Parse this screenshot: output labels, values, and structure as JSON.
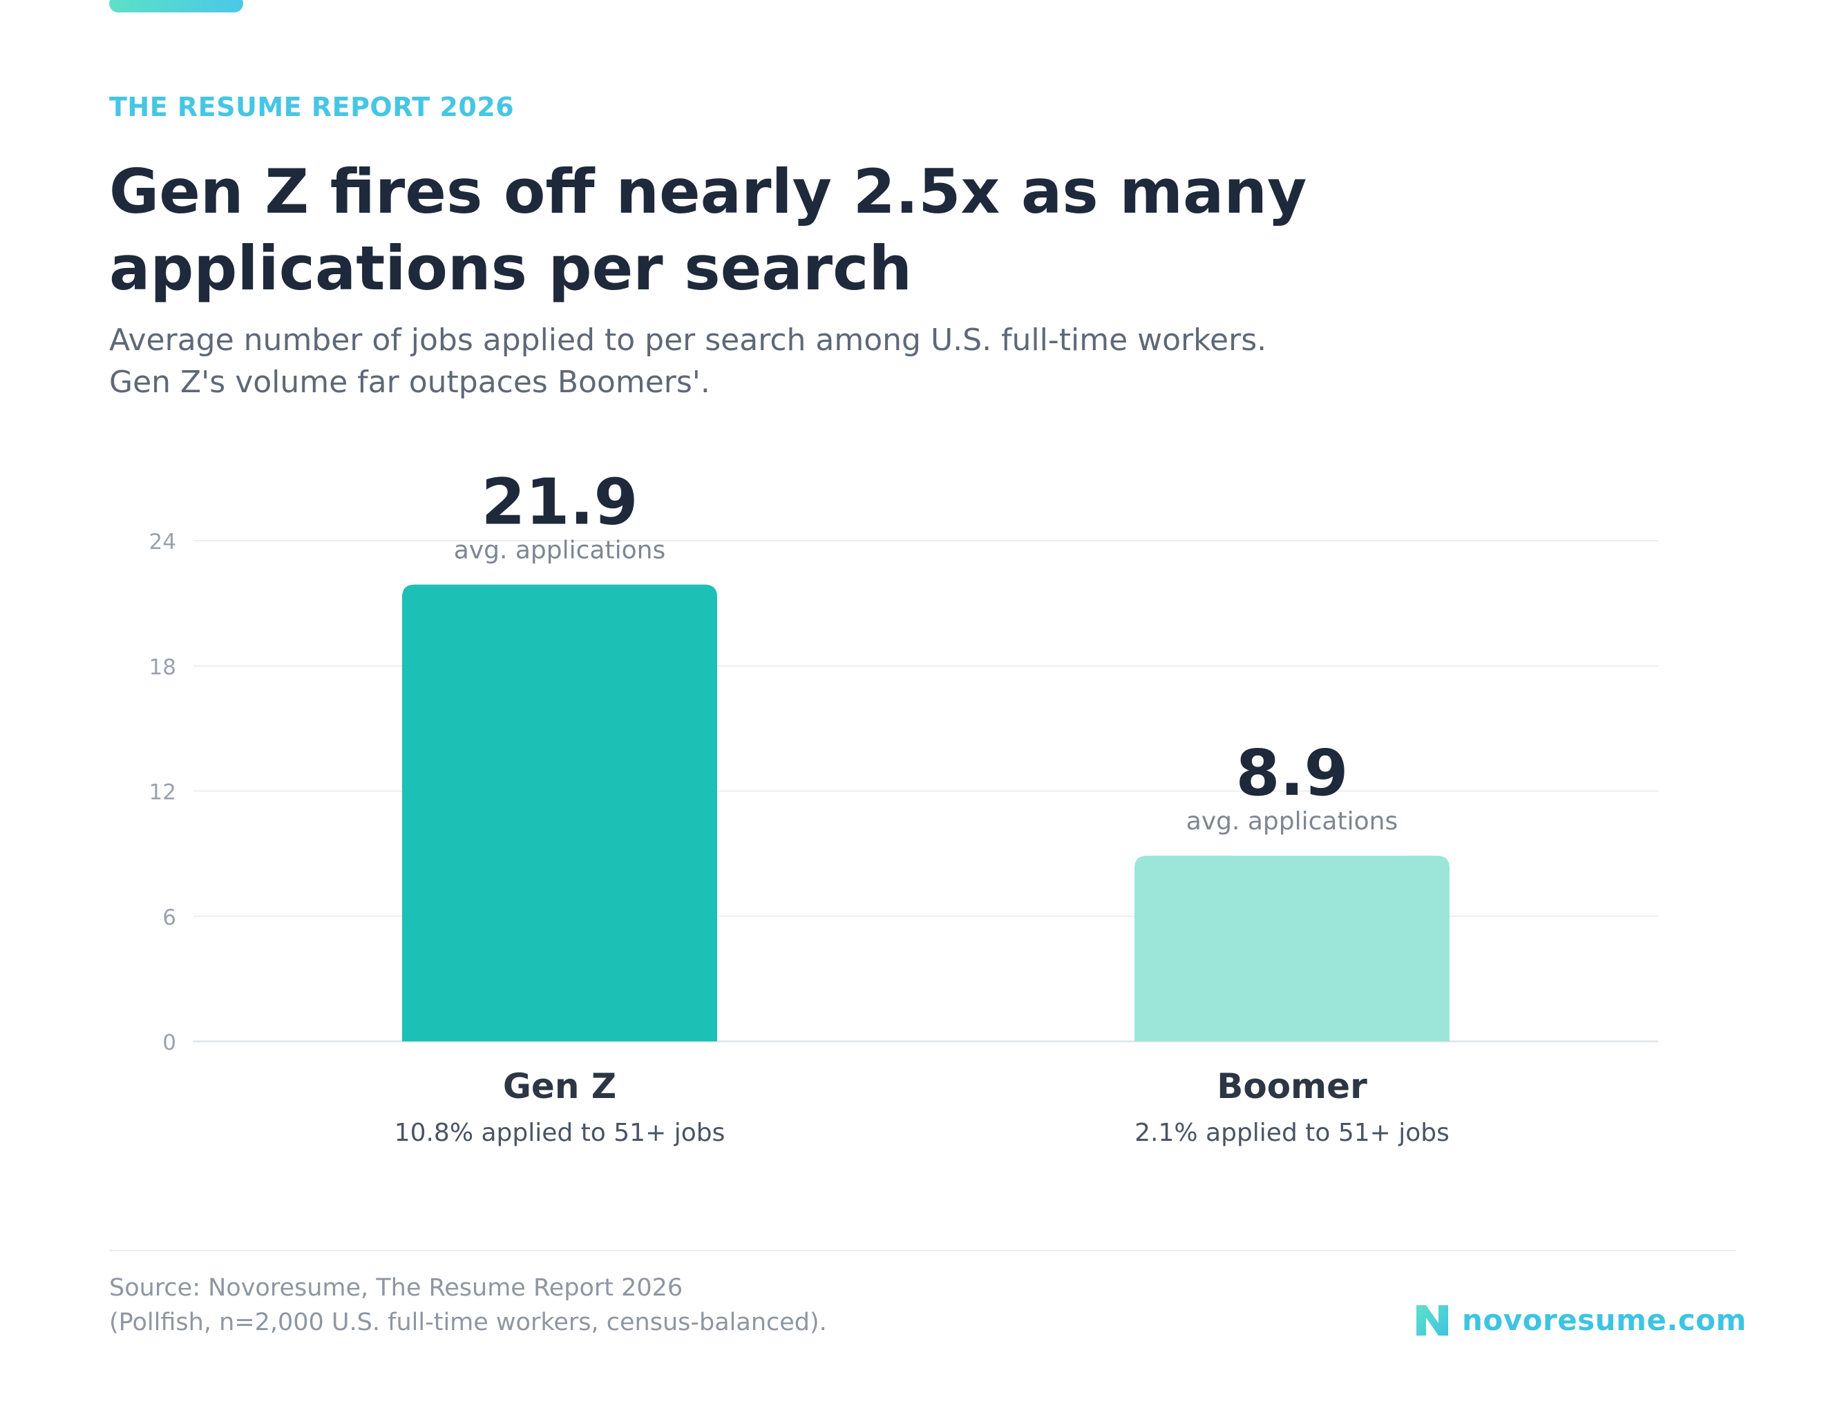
{
  "header": {
    "eyebrow": "THE RESUME REPORT 2026",
    "title": "Gen Z fires off nearly 2.5x as many applications per search",
    "subtitle_line1": "Average number of jobs applied to per search among U.S. full-time workers.",
    "subtitle_line2": "Gen Z's volume far outpaces Boomers'."
  },
  "chart_data": {
    "type": "bar",
    "categories": [
      "Gen Z",
      "Boomer"
    ],
    "values": [
      21.9,
      8.9
    ],
    "value_caption": "avg. applications",
    "category_notes": [
      "10.8% applied to 51+ jobs",
      "2.1% applied to 51+ jobs"
    ],
    "bar_colors": [
      "#1dc0b5",
      "#9be6d9"
    ],
    "ylim": [
      0,
      24
    ],
    "yticks": [
      0,
      6,
      12,
      18,
      24
    ],
    "grid": true
  },
  "footer": {
    "source_line1": "Source: Novoresume, The Resume Report 2026",
    "source_line2": "(Pollfish, n=2,000 U.S. full-time workers, census-balanced).",
    "logo_text": "novoresume.com",
    "logo_icon": "novoresume-logo-icon"
  },
  "colors": {
    "accent": "#45c6e4",
    "title": "#1e2a3b"
  }
}
